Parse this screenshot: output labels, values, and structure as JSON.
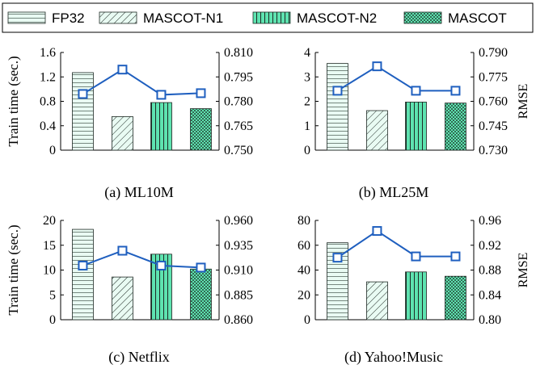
{
  "legend": {
    "items": [
      {
        "label": "FP32",
        "pattern": "hlines"
      },
      {
        "label": "MASCOT-N1",
        "pattern": "diag"
      },
      {
        "label": "MASCOT-N2",
        "pattern": "vlines"
      },
      {
        "label": "MASCOT",
        "pattern": "dots"
      }
    ]
  },
  "colors": {
    "bar_fill": "#5ee3b0",
    "bar_fill_light": "#e9fbf3",
    "bar_stroke": "#1f2a25",
    "line": "#1f5fbf",
    "marker": "#1f5fbf",
    "axis": "#000000"
  },
  "chart_data": [
    {
      "type": "bar",
      "caption": "(a) ML10M",
      "categories": [
        "FP32",
        "MASCOT-N1",
        "MASCOT-N2",
        "MASCOT"
      ],
      "ylabel_left": "Train time (sec.)",
      "ylabel_right": "",
      "ylim_left": [
        0,
        1.6
      ],
      "yticks_left": [
        "0",
        "0.4",
        "0.8",
        "1.2",
        "1.6"
      ],
      "ylim_right": [
        0.75,
        0.81
      ],
      "yticks_right": [
        "0.750",
        "0.765",
        "0.780",
        "0.795",
        "0.810"
      ],
      "series": [
        {
          "name": "Train time",
          "kind": "bar",
          "values": [
            1.27,
            0.55,
            0.78,
            0.68
          ]
        },
        {
          "name": "RMSE",
          "kind": "line",
          "values": [
            0.7845,
            0.7995,
            0.784,
            0.785
          ]
        }
      ]
    },
    {
      "type": "bar",
      "caption": "(b) ML25M",
      "categories": [
        "FP32",
        "MASCOT-N1",
        "MASCOT-N2",
        "MASCOT"
      ],
      "ylabel_left": "",
      "ylabel_right": "RMSE",
      "ylim_left": [
        0,
        4
      ],
      "yticks_left": [
        "0",
        "1",
        "2",
        "3",
        "4"
      ],
      "ylim_right": [
        0.73,
        0.79
      ],
      "yticks_right": [
        "0.730",
        "0.745",
        "0.760",
        "0.775",
        "0.790"
      ],
      "series": [
        {
          "name": "Train time",
          "kind": "bar",
          "values": [
            3.55,
            1.62,
            1.97,
            1.93
          ]
        },
        {
          "name": "RMSE",
          "kind": "line",
          "values": [
            0.7665,
            0.7815,
            0.7665,
            0.7665
          ]
        }
      ]
    },
    {
      "type": "bar",
      "caption": "(c) Netflix",
      "categories": [
        "FP32",
        "MASCOT-N1",
        "MASCOT-N2",
        "MASCOT"
      ],
      "ylabel_left": "Train time (sec.)",
      "ylabel_right": "",
      "ylim_left": [
        0,
        20
      ],
      "yticks_left": [
        "0",
        "5",
        "10",
        "15",
        "20"
      ],
      "ylim_right": [
        0.86,
        0.96
      ],
      "yticks_right": [
        "0.860",
        "0.885",
        "0.910",
        "0.935",
        "0.960"
      ],
      "series": [
        {
          "name": "Train time",
          "kind": "bar",
          "values": [
            18.2,
            8.6,
            13.2,
            10.2
          ]
        },
        {
          "name": "RMSE",
          "kind": "line",
          "values": [
            0.9145,
            0.9295,
            0.9145,
            0.9125
          ]
        }
      ]
    },
    {
      "type": "bar",
      "caption": "(d) Yahoo!Music",
      "categories": [
        "FP32",
        "MASCOT-N1",
        "MASCOT-N2",
        "MASCOT"
      ],
      "ylabel_left": "",
      "ylabel_right": "RMSE",
      "ylim_left": [
        0,
        80
      ],
      "yticks_left": [
        "0",
        "20",
        "40",
        "60",
        "80"
      ],
      "ylim_right": [
        0.8,
        0.96
      ],
      "yticks_right": [
        "0.80",
        "0.84",
        "0.88",
        "0.92",
        "0.96"
      ],
      "series": [
        {
          "name": "Train time",
          "kind": "bar",
          "values": [
            62,
            30.5,
            38.5,
            35
          ]
        },
        {
          "name": "RMSE",
          "kind": "line",
          "values": [
            0.9,
            0.943,
            0.902,
            0.902
          ]
        }
      ]
    }
  ]
}
